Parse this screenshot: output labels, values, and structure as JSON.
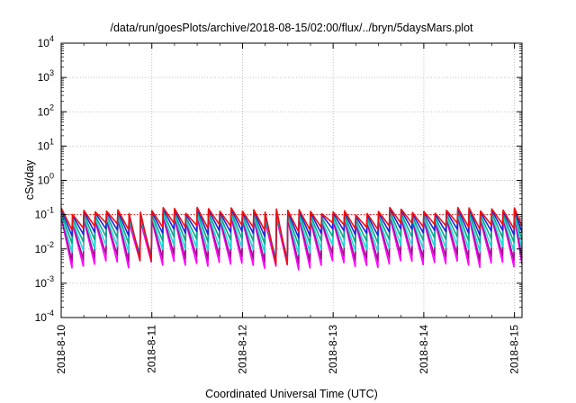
{
  "chart_data": {
    "type": "line",
    "title": "/data/run/goesPlots/archive/2018-08-15/02:00/flux/../bryn/5daysMars.plot",
    "xlabel": "Coordinated Universal Time (UTC)",
    "ylabel": "cSv/day",
    "yscale": "log",
    "ylim": [
      0.0001,
      10000
    ],
    "xlim": [
      "2018-08-10 00:00",
      "2018-08-15 02:00"
    ],
    "grid": true,
    "legend": "none",
    "y_ticks": [
      {
        "base": "10",
        "exp": "-4"
      },
      {
        "base": "10",
        "exp": "-3"
      },
      {
        "base": "10",
        "exp": "-2"
      },
      {
        "base": "10",
        "exp": "-1"
      },
      {
        "base": "10",
        "exp": "0"
      },
      {
        "base": "10",
        "exp": "1"
      },
      {
        "base": "10",
        "exp": "2"
      },
      {
        "base": "10",
        "exp": "3"
      },
      {
        "base": "10",
        "exp": "4"
      }
    ],
    "x_ticks": [
      "2018-8-10",
      "2018-8-11",
      "2018-8-12",
      "2018-8-13",
      "2018-8-14",
      "2018-8-15"
    ],
    "reference_line": {
      "y": 0.1,
      "color": "#ff0000",
      "style": "dotted"
    },
    "pattern": {
      "cycle_hours": 3,
      "series_peak_min": [
        [
          0.13,
          0.045
        ],
        [
          0.12,
          0.03
        ],
        [
          0.1,
          0.018
        ],
        [
          0.085,
          0.01
        ],
        [
          0.075,
          0.0055
        ],
        [
          0.07,
          0.0035
        ]
      ],
      "dips": [
        {
          "x": "2018-08-12 10:30",
          "min": 0.0035
        },
        {
          "x": "2018-08-10 22:30",
          "min": 0.0045
        }
      ]
    },
    "series": [
      {
        "values": "sawtooth-1",
        "color": "#e11"
      },
      {
        "values": "sawtooth-2",
        "color": "#2222dd"
      },
      {
        "values": "sawtooth-3",
        "color": "#11a58a"
      },
      {
        "values": "sawtooth-4",
        "color": "#22d8d8"
      },
      {
        "values": "sawtooth-5",
        "color": "#a30c8e"
      },
      {
        "values": "sawtooth-6",
        "color": "#ff00ff"
      }
    ]
  }
}
